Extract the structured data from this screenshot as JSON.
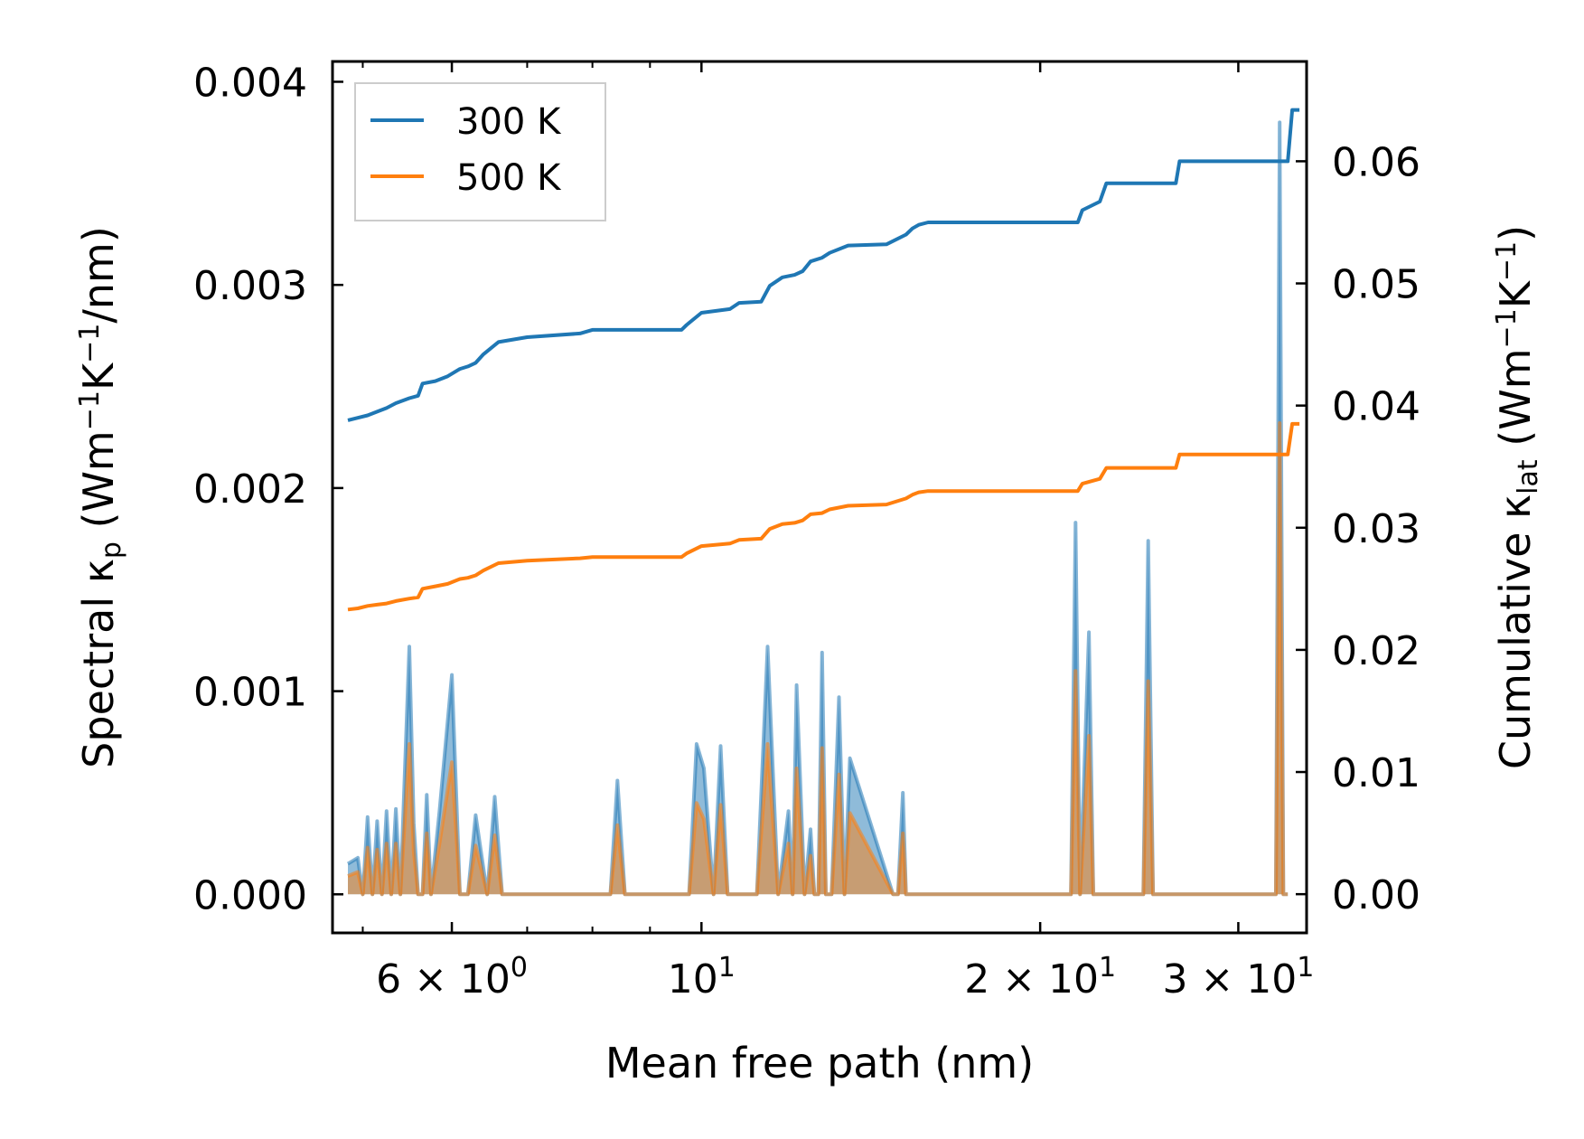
{
  "chart_data": {
    "type": "line",
    "xscale": "log",
    "xlim": [
      4.7,
      34.5
    ],
    "xlabel": "Mean free path (nm)",
    "ylabel_left": {
      "main": "Spectral κ",
      "sub": "p",
      "units": " (Wm",
      "u1": "−1",
      "u2": "K",
      "u3": "−1",
      "u4": "/nm)"
    },
    "ylabel_right": {
      "main": "Cumulative κ",
      "sub": "lat",
      "units": " (Wm",
      "u1": "−1",
      "u2": "K",
      "u3": "−1",
      "u4": ")"
    },
    "ylim_left": [
      -0.00019,
      0.0041
    ],
    "ylim_right": [
      -0.00317,
      0.06817
    ],
    "x_ticks": [
      {
        "value": 6,
        "base": "6 × 10",
        "exp": "0"
      },
      {
        "value": 10,
        "base": "10",
        "exp": "1"
      },
      {
        "value": 20,
        "base": "2 × 10",
        "exp": "1"
      },
      {
        "value": 30,
        "base": "3 × 10",
        "exp": "1"
      }
    ],
    "left_ticks": [
      "0.000",
      "0.001",
      "0.002",
      "0.003",
      "0.004"
    ],
    "left_tick_values": [
      0,
      0.001,
      0.002,
      0.003,
      0.004
    ],
    "right_ticks": [
      "0.00",
      "0.01",
      "0.02",
      "0.03",
      "0.04",
      "0.05",
      "0.06"
    ],
    "right_tick_values": [
      0,
      0.01,
      0.02,
      0.03,
      0.04,
      0.05,
      0.06
    ],
    "legend": {
      "position": "top-left",
      "entries": [
        {
          "label": "300 K",
          "color": "#1f77b4"
        },
        {
          "label": "500 K",
          "color": "#ff7f0e"
        }
      ]
    },
    "series": [
      {
        "name": "300 K",
        "color": "#1f77b4",
        "axis": "right",
        "x": [
          4.85,
          4.95,
          5.05,
          5.15,
          5.25,
          5.35,
          5.5,
          5.6,
          5.65,
          5.8,
          5.95,
          6.1,
          6.2,
          6.3,
          6.4,
          6.6,
          7.0,
          7.8,
          8.0,
          8.2,
          8.8,
          9.6,
          9.7,
          10.0,
          10.6,
          10.8,
          11.3,
          11.5,
          11.8,
          12.1,
          12.3,
          12.5,
          12.8,
          13.0,
          13.5,
          14.6,
          15.2,
          15.4,
          15.6,
          15.9,
          16.2,
          21.6,
          21.8,
          22.6,
          22.9,
          24.4,
          26.4,
          26.6,
          33.2,
          33.5,
          34.0
        ],
        "y": [
          0.0388,
          0.039,
          0.0392,
          0.0395,
          0.0398,
          0.0402,
          0.0406,
          0.0408,
          0.0418,
          0.042,
          0.0424,
          0.043,
          0.0432,
          0.0435,
          0.0442,
          0.0452,
          0.0456,
          0.0459,
          0.0462,
          0.0462,
          0.0462,
          0.0462,
          0.0466,
          0.0476,
          0.0479,
          0.0484,
          0.0485,
          0.0498,
          0.0505,
          0.0507,
          0.051,
          0.0518,
          0.0521,
          0.0525,
          0.0531,
          0.0532,
          0.054,
          0.0545,
          0.0548,
          0.055,
          0.055,
          0.055,
          0.056,
          0.0567,
          0.0582,
          0.0582,
          0.0582,
          0.06,
          0.06,
          0.0642,
          0.0642
        ]
      },
      {
        "name": "500 K",
        "color": "#ff7f0e",
        "axis": "right",
        "x": [
          4.85,
          4.95,
          5.05,
          5.15,
          5.25,
          5.35,
          5.5,
          5.6,
          5.65,
          5.8,
          5.95,
          6.1,
          6.2,
          6.3,
          6.4,
          6.6,
          7.0,
          7.8,
          8.0,
          8.2,
          8.8,
          9.6,
          9.7,
          10.0,
          10.6,
          10.8,
          11.3,
          11.5,
          11.8,
          12.1,
          12.3,
          12.5,
          12.8,
          13.0,
          13.5,
          14.6,
          15.2,
          15.4,
          15.6,
          15.9,
          16.2,
          21.6,
          21.8,
          22.6,
          22.9,
          24.4,
          26.4,
          26.6,
          33.2,
          33.5,
          34.0
        ],
        "y": [
          0.0233,
          0.0234,
          0.0236,
          0.0237,
          0.0238,
          0.024,
          0.0242,
          0.0243,
          0.025,
          0.0252,
          0.0254,
          0.0258,
          0.0259,
          0.0261,
          0.0265,
          0.0271,
          0.0273,
          0.0275,
          0.0276,
          0.0276,
          0.0276,
          0.0276,
          0.0279,
          0.0285,
          0.0287,
          0.029,
          0.0291,
          0.0299,
          0.0303,
          0.0304,
          0.0306,
          0.0311,
          0.0312,
          0.0315,
          0.0318,
          0.0319,
          0.0324,
          0.0327,
          0.0329,
          0.033,
          0.033,
          0.033,
          0.0336,
          0.034,
          0.0349,
          0.0349,
          0.0349,
          0.036,
          0.036,
          0.0385,
          0.0385
        ]
      },
      {
        "name": "300 K spectral",
        "color": "#1f77b4",
        "axis": "left",
        "x": [
          4.85,
          4.95,
          5.0,
          5.05,
          5.1,
          5.15,
          5.2,
          5.25,
          5.3,
          5.35,
          5.4,
          5.5,
          5.55,
          5.6,
          5.65,
          5.7,
          5.75,
          5.85,
          6.0,
          6.1,
          6.2,
          6.3,
          6.45,
          6.55,
          6.65,
          6.75,
          6.8,
          6.9,
          7.05,
          7.15,
          7.25,
          7.35,
          8.3,
          8.42,
          8.55,
          9.75,
          9.9,
          10.05,
          10.25,
          10.4,
          10.55,
          10.65,
          10.75,
          11.2,
          11.45,
          11.7,
          11.95,
          12.05,
          12.15,
          12.35,
          12.5,
          12.6,
          12.7,
          12.8,
          12.9,
          13.05,
          13.25,
          13.4,
          13.55,
          14.8,
          14.95,
          15.1,
          15.2,
          15.3,
          15.45,
          15.55,
          15.65,
          21.3,
          21.5,
          21.7,
          22.1,
          22.3,
          22.5,
          24.7,
          24.95,
          25.2,
          32.4,
          32.65,
          32.9,
          33.2
        ],
        "y": [
          0.00015,
          0.00018,
          0.0,
          0.00038,
          0.0,
          0.00036,
          0.0,
          0.00041,
          0.0,
          0.00042,
          0.0,
          0.00122,
          0.00035,
          0.0,
          0.0,
          0.00049,
          0.0,
          0.00041,
          0.00108,
          0.0,
          0.0,
          0.00039,
          0.0,
          0.00048,
          0.0,
          0.0,
          0.0,
          0.0,
          0.0,
          0.0,
          0.0,
          0.0,
          0.0,
          0.00056,
          0.0,
          0.0,
          0.00074,
          0.00062,
          0.0,
          0.00073,
          0.0,
          0.0,
          0.0,
          0.0,
          0.00122,
          0.0,
          0.00041,
          0.0,
          0.00103,
          0.0,
          0.00032,
          0.0,
          0.0,
          0.00119,
          0.0,
          0.0,
          0.00097,
          0.0,
          0.00067,
          0.0,
          0.0,
          0.0005,
          0.0,
          0.0,
          0.0,
          0.0,
          0.0,
          0.0,
          0.00183,
          0.0,
          0.00129,
          0.0,
          0.0,
          0.0,
          0.00174,
          0.0,
          0.0,
          0.0038,
          0.0,
          0.0
        ]
      },
      {
        "name": "500 K spectral",
        "color": "#ff7f0e",
        "axis": "left",
        "x": [
          4.85,
          4.95,
          5.0,
          5.05,
          5.1,
          5.15,
          5.2,
          5.25,
          5.3,
          5.35,
          5.4,
          5.5,
          5.55,
          5.6,
          5.65,
          5.7,
          5.75,
          5.85,
          6.0,
          6.1,
          6.2,
          6.3,
          6.45,
          6.55,
          6.65,
          6.75,
          6.8,
          6.9,
          7.05,
          7.15,
          7.25,
          7.35,
          8.3,
          8.42,
          8.55,
          9.75,
          9.9,
          10.05,
          10.25,
          10.4,
          10.55,
          10.65,
          10.75,
          11.2,
          11.45,
          11.7,
          11.95,
          12.05,
          12.15,
          12.35,
          12.5,
          12.6,
          12.7,
          12.8,
          12.9,
          13.05,
          13.25,
          13.4,
          13.55,
          14.8,
          14.95,
          15.1,
          15.2,
          15.3,
          15.45,
          15.55,
          15.65,
          21.3,
          21.5,
          21.7,
          22.1,
          22.3,
          22.5,
          24.7,
          24.95,
          25.2,
          32.4,
          32.65,
          32.9,
          33.2
        ],
        "y": [
          9e-05,
          0.00011,
          0.0,
          0.00023,
          0.0,
          0.00022,
          0.0,
          0.00025,
          0.0,
          0.00025,
          0.0,
          0.00074,
          0.00021,
          0.0,
          0.0,
          0.0003,
          0.0,
          0.00025,
          0.00065,
          0.0,
          0.0,
          0.00024,
          0.0,
          0.00029,
          0.0,
          0.0,
          0.0,
          0.0,
          0.0,
          0.0,
          0.0,
          0.0,
          0.0,
          0.00034,
          0.0,
          0.0,
          0.00045,
          0.00037,
          0.0,
          0.00044,
          0.0,
          0.0,
          0.0,
          0.0,
          0.00074,
          0.0,
          0.00025,
          0.0,
          0.00062,
          0.0,
          0.00019,
          0.0,
          0.0,
          0.00072,
          0.0,
          0.0,
          0.00059,
          0.0,
          0.0004,
          0.0,
          0.0,
          0.0003,
          0.0,
          0.0,
          0.0,
          0.0,
          0.0,
          0.0,
          0.0011,
          0.0,
          0.00078,
          0.0,
          0.0,
          0.0,
          0.00105,
          0.0,
          0.0,
          0.00232,
          0.0,
          0.0
        ]
      }
    ]
  }
}
